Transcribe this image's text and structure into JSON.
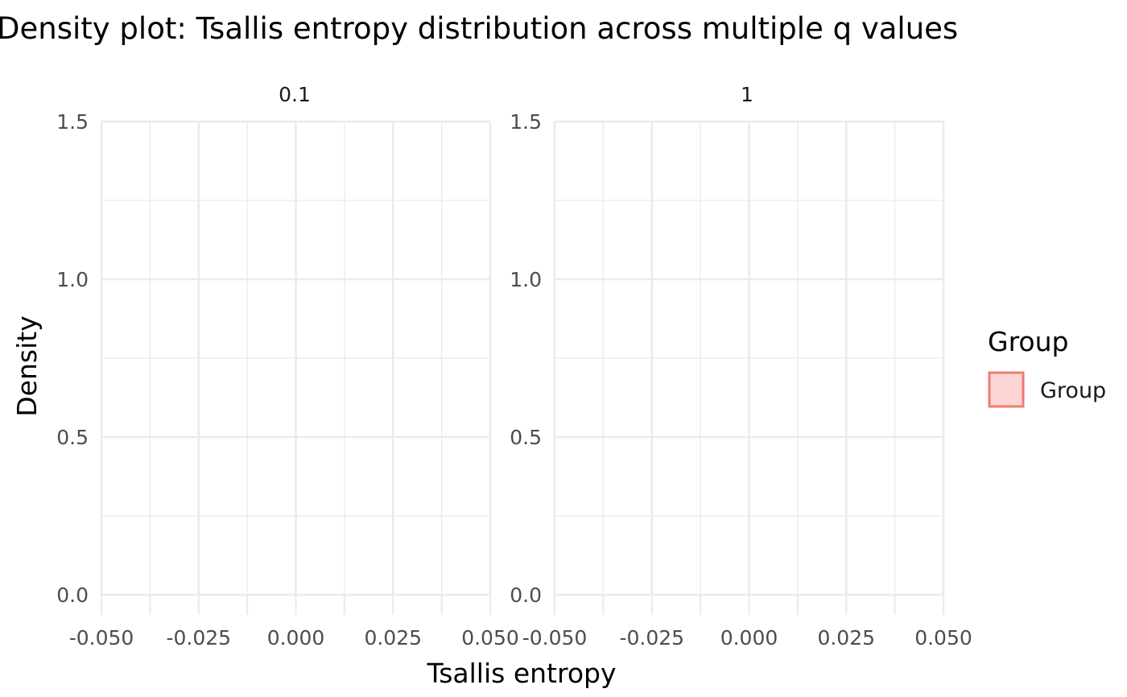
{
  "chart_data": {
    "type": "area",
    "title": "Density plot: Tsallis entropy distribution across multiple q values",
    "xlabel": "Tsallis entropy",
    "ylabel": "Density",
    "xlim": [
      -0.05,
      0.05
    ],
    "ylim": [
      0,
      1.5
    ],
    "x_ticks": [
      "-0.050",
      "-0.025",
      "0.000",
      "0.025",
      "0.050"
    ],
    "y_ticks": [
      "0.0",
      "0.5",
      "1.0",
      "1.5"
    ],
    "facets": [
      {
        "label": "0.1",
        "series": []
      },
      {
        "label": "1",
        "series": []
      }
    ],
    "grid": true,
    "legend": {
      "title": "Group",
      "position": "right",
      "entries": [
        {
          "label": "Group",
          "fill": "#fcd5d4",
          "stroke": "#f07a74"
        }
      ]
    },
    "colors": {
      "grid": "#ebebeb",
      "tick_text": "#4d4d4d",
      "text": "#000000"
    }
  }
}
